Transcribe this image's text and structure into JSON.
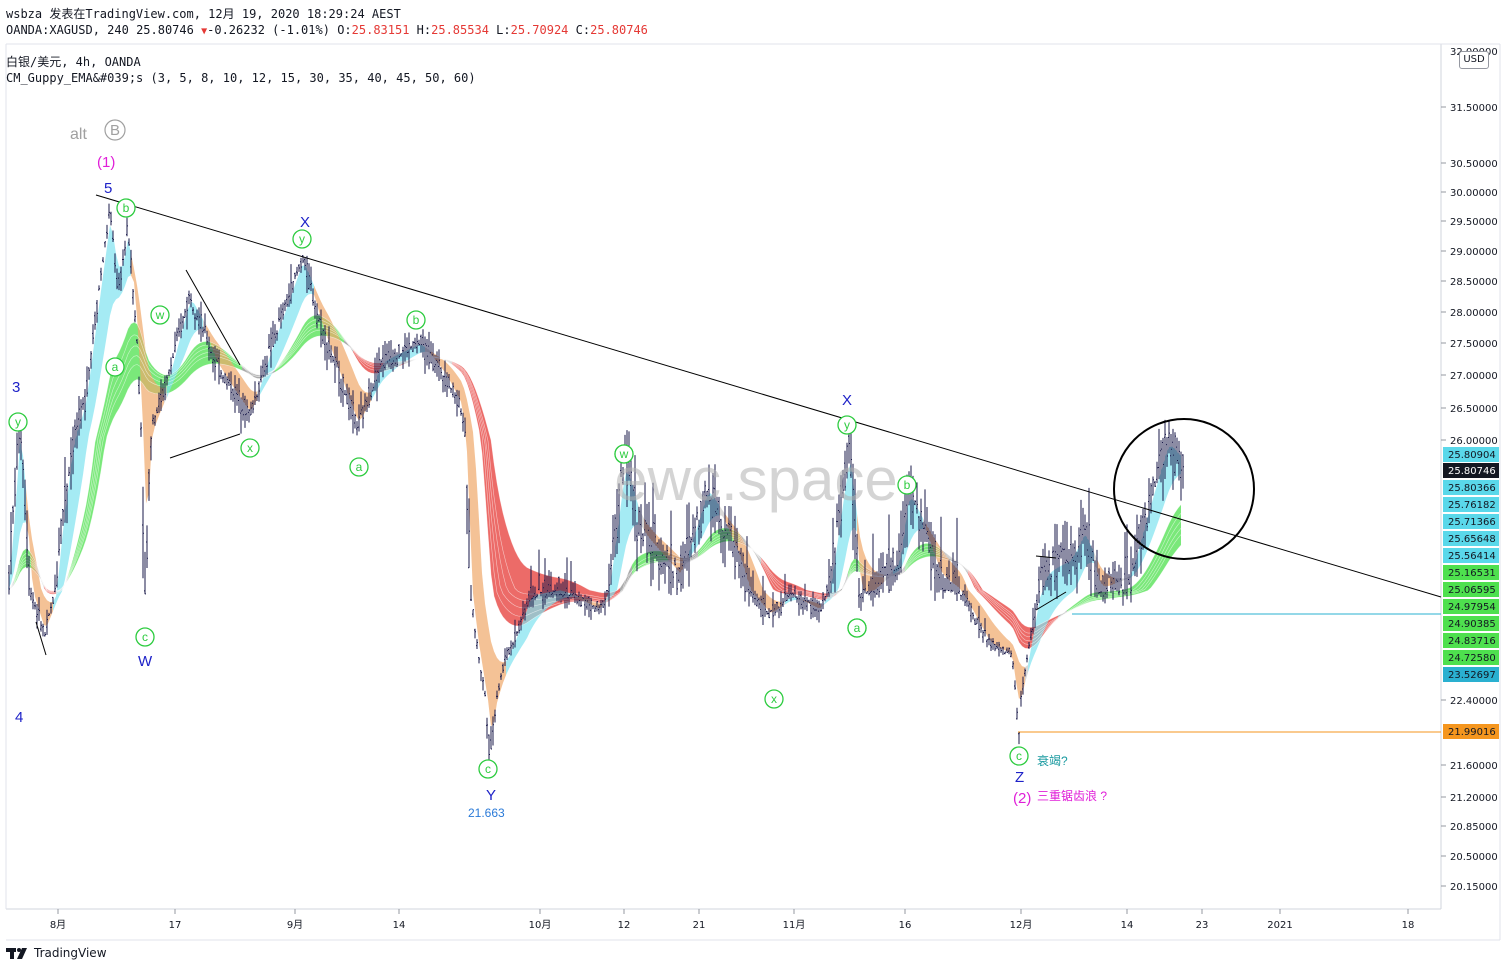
{
  "header": {
    "author": "wsbza",
    "published": "发表在TradingView.com, 12月 19, 2020 18:29:24 AEST",
    "symbol": "OANDA:XAGUSD, 240",
    "last": "25.80746",
    "change": "-0.26232 (-1.01%)",
    "o_label": "O:",
    "o": "25.83151",
    "h_label": "H:",
    "h": "25.85534",
    "l_label": "L:",
    "l": "25.70924",
    "c_label": "C:",
    "c": "25.80746",
    "title": "白银/美元, 4h, OANDA",
    "indicator": "CM_Guppy_EMA&#039;s (3, 5, 8, 10, 12, 15, 30, 35, 40, 45, 50, 60)"
  },
  "currency": "USD",
  "watermark": "ewc.space",
  "footer": {
    "brand": "TradingView"
  },
  "colors": {
    "up_ema": "#4ee04e",
    "down_ema": "#e53935",
    "fast_up": "#7fe3f0",
    "fast_down": "#f0a86a",
    "neutral": "#8c8c8c",
    "bars": "#1a1a4a",
    "trendline": "#000000",
    "wave_green": "#2ecc40",
    "wave_blue": "#1e22c8",
    "wave_magenta": "#e01fd8"
  },
  "chart_data": {
    "type": "candlestick",
    "symbol": "XAGUSD",
    "x_ticks": [
      "8月",
      "17",
      "9月",
      "14",
      "10月",
      "12",
      "21",
      "11月",
      "16",
      "12月",
      "14",
      "23",
      "2021",
      "18"
    ],
    "y_ticks": [
      "31.50000",
      "30.50000",
      "30.00000",
      "29.50000",
      "29.00000",
      "28.50000",
      "28.00000",
      "27.50000",
      "27.00000",
      "26.50000",
      "26.00000",
      "22.40000",
      "21.60000",
      "21.20000",
      "20.85000",
      "20.50000",
      "20.15000"
    ],
    "y_top_partial": "32.00000",
    "price_labels": [
      {
        "value": "25.80904",
        "color": "#5ad8ea"
      },
      {
        "value": "25.80746",
        "color": "#131722"
      },
      {
        "value": "25.80366",
        "color": "#5ad8ea"
      },
      {
        "value": "25.76182",
        "color": "#5ad8ea"
      },
      {
        "value": "25.71366",
        "color": "#5ad8ea"
      },
      {
        "value": "25.65648",
        "color": "#5ad8ea"
      },
      {
        "value": "25.56414",
        "color": "#5ad8ea"
      },
      {
        "value": "25.16531",
        "color": "#4ee04e"
      },
      {
        "value": "25.06595",
        "color": "#4ee04e"
      },
      {
        "value": "24.97954",
        "color": "#4ee04e"
      },
      {
        "value": "24.90385",
        "color": "#4ee04e"
      },
      {
        "value": "24.83716",
        "color": "#4ee04e"
      },
      {
        "value": "24.72580",
        "color": "#4ee04e"
      },
      {
        "value": "23.52697",
        "color": "#2ab0d0"
      },
      {
        "value": "21.99016",
        "color": "#f5961e"
      }
    ],
    "annotations": [
      {
        "text": "alt",
        "color": "#a0a0a0"
      },
      {
        "text": "B",
        "color": "#a0a0a0"
      },
      {
        "text": "(1)",
        "color": "#e01fd8"
      },
      {
        "text": "5",
        "color": "#1e22c8"
      },
      {
        "text": "3",
        "color": "#1e22c8"
      },
      {
        "text": "4",
        "color": "#1e22c8"
      },
      {
        "text": "W",
        "color": "#1e22c8"
      },
      {
        "text": "X",
        "color": "#1e22c8"
      },
      {
        "text": "Y",
        "color": "#1e22c8"
      },
      {
        "text": "21.663",
        "color": "#2a7ad8"
      },
      {
        "text": "X",
        "color": "#1e22c8"
      },
      {
        "text": "Z",
        "color": "#1e22c8"
      },
      {
        "text": "(2)",
        "color": "#e01fd8"
      },
      {
        "text": "衰竭?",
        "color": "#1a9aa0"
      },
      {
        "text": "三重锯齿浪 ?",
        "color": "#e01fd8"
      }
    ],
    "wave_labels": [
      "y",
      "b",
      "a",
      "w",
      "c",
      "y",
      "x",
      "w",
      "a",
      "b",
      "a",
      "c",
      "w",
      "x",
      "y",
      "b",
      "a",
      "c"
    ],
    "trendline": {
      "from": [
        "Aug 5",
        "29.95"
      ],
      "to": [
        "Jan 20",
        "24.95"
      ]
    },
    "horizontal_levels": [
      {
        "value": 24.97954,
        "color": "#2ab0d0"
      },
      {
        "value": 21.99016,
        "color": "#f5961e"
      }
    ]
  }
}
